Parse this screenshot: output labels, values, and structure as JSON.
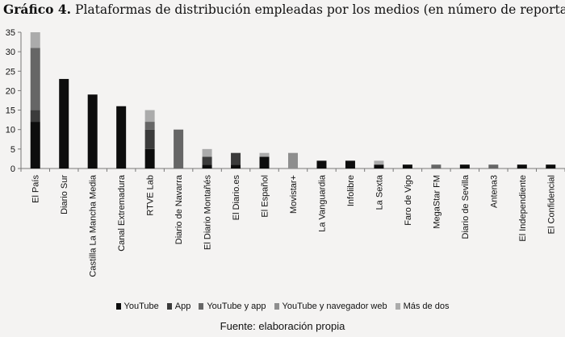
{
  "title": {
    "prefix": "Gráfico 4.",
    "text": "Plataformas de distribución empleadas por los medios (en número de reportajes)"
  },
  "source": "Fuente: elaboración propia",
  "chart_data": {
    "type": "bar",
    "stacked": true,
    "categories": [
      "El País",
      "Diario Sur",
      "Castilla La Mancha Media",
      "Canal Extremadura",
      "RTVE Lab",
      "Diario de Navarra",
      "El Diario Montañés",
      "El Diario.es",
      "El Español",
      "Movistar+",
      "La Vanguardia",
      "Infolibre",
      "La Sexta",
      "Faro de Vigo",
      "MegaStar FM",
      "Diario de Sevilla",
      "Antena3",
      "El Independiente",
      "El Confidencial"
    ],
    "series": [
      {
        "name": "YouTube",
        "color": "#0d0d0d",
        "values": [
          12,
          23,
          19,
          16,
          5,
          0,
          1,
          1,
          3,
          0,
          2,
          2,
          1,
          1,
          0,
          1,
          0,
          1,
          1
        ]
      },
      {
        "name": "App",
        "color": "#3b3b3b",
        "values": [
          3,
          0,
          0,
          0,
          5,
          0,
          2,
          3,
          0,
          0,
          0,
          0,
          0,
          0,
          0,
          0,
          0,
          0,
          0
        ]
      },
      {
        "name": "YouTube y app",
        "color": "#666666",
        "values": [
          16,
          0,
          0,
          0,
          2,
          10,
          0,
          0,
          0,
          0,
          0,
          0,
          0,
          0,
          1,
          0,
          1,
          0,
          0
        ]
      },
      {
        "name": "YouTube y navegador web",
        "color": "#8e8e8e",
        "values": [
          0,
          0,
          0,
          0,
          0,
          0,
          0,
          0,
          0,
          4,
          0,
          0,
          0,
          0,
          0,
          0,
          0,
          0,
          0
        ]
      },
      {
        "name": "Más de dos",
        "color": "#ababab",
        "values": [
          4,
          0,
          0,
          0,
          3,
          0,
          2,
          0,
          1,
          0,
          0,
          0,
          1,
          0,
          0,
          0,
          0,
          0,
          0
        ]
      }
    ],
    "yticks": [
      0,
      5,
      10,
      15,
      20,
      25,
      30,
      35
    ],
    "ylim": [
      0,
      35
    ],
    "grid": false,
    "legend": "bottom"
  }
}
